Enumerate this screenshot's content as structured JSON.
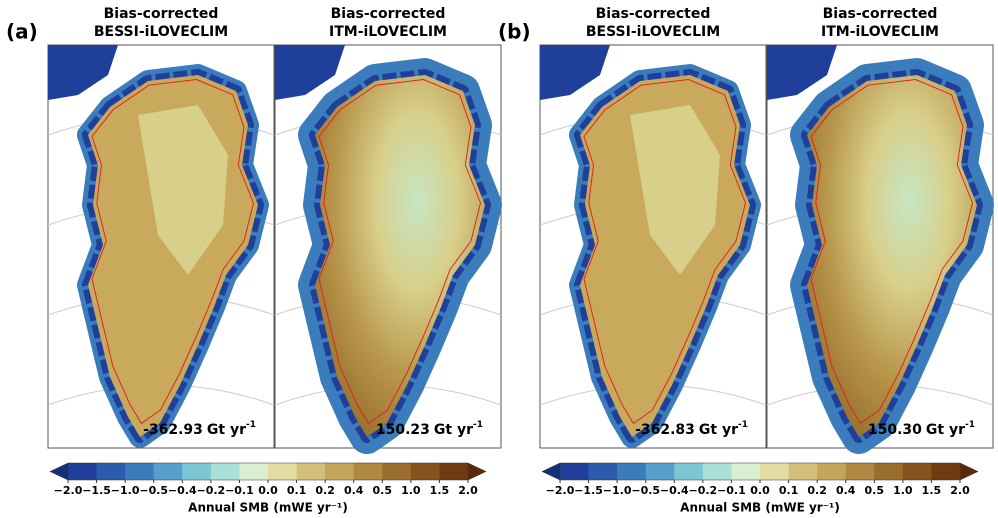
{
  "panels": [
    {
      "label": "(a)",
      "maps": [
        {
          "title": [
            "Bias-corrected",
            "BESSI-iLOVECLIM"
          ],
          "value": "-362.93",
          "unit": "Gt yr",
          "sup": "-1"
        },
        {
          "title": [
            "Bias-corrected",
            "ITM-iLOVECLIM"
          ],
          "value": "150.23",
          "unit": "Gt yr",
          "sup": "-1"
        }
      ],
      "colorbar": {
        "ticks": [
          "−2.0",
          "−1.5",
          "−1.0",
          "−0.5",
          "−0.4",
          "−0.2",
          "−0.1",
          "0.0",
          "0.1",
          "0.2",
          "0.4",
          "0.5",
          "1.0",
          "1.5",
          "2.0"
        ],
        "label": "Annual SMB (mWE yr⁻¹)"
      }
    },
    {
      "label": "(b)",
      "maps": [
        {
          "title": [
            "Bias-corrected",
            "BESSI-iLOVECLIM"
          ],
          "value": "-362.83",
          "unit": "Gt yr",
          "sup": "-1"
        },
        {
          "title": [
            "Bias-corrected",
            "ITM-iLOVECLIM"
          ],
          "value": "150.30",
          "unit": "Gt yr",
          "sup": "-1"
        }
      ],
      "colorbar": {
        "ticks": [
          "−2.0",
          "−1.5",
          "−1.0",
          "−0.5",
          "−0.4",
          "−0.2",
          "−0.1",
          "0.0",
          "0.1",
          "0.2",
          "0.4",
          "0.5",
          "1.0",
          "1.5",
          "2.0"
        ],
        "label": "Annual SMB (mWE yr⁻¹)"
      }
    }
  ]
}
